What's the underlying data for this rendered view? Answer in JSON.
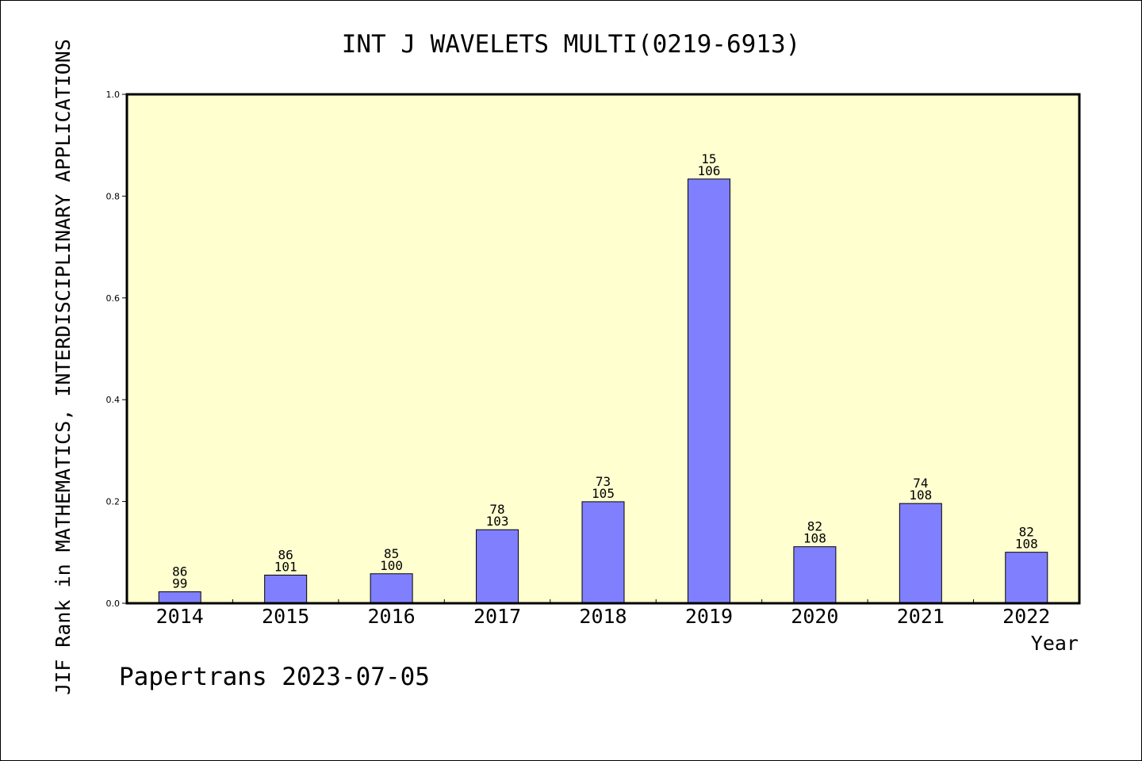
{
  "chart_data": {
    "type": "bar",
    "title": "INT J WAVELETS MULTI(0219-6913)",
    "xlabel": "Year",
    "ylabel": "JIF Rank in MATHEMATICS,  INTERDISCIPLINARY APPLICATIONS",
    "footer": "Papertrans 2023-07-05",
    "categories": [
      "2014",
      "2015",
      "2016",
      "2017",
      "2018",
      "2019",
      "2020",
      "2021",
      "2022"
    ],
    "values": [
      0.0225,
      0.0553,
      0.058,
      0.1445,
      0.1995,
      0.8336,
      0.1111,
      0.196,
      0.1002
    ],
    "bar_labels": [
      [
        "86",
        "99"
      ],
      [
        "86",
        "101"
      ],
      [
        "85",
        "100"
      ],
      [
        "78",
        "103"
      ],
      [
        "73",
        "105"
      ],
      [
        "15",
        "106"
      ],
      [
        "82",
        "108"
      ],
      [
        "74",
        "108"
      ],
      [
        "82",
        "108"
      ]
    ],
    "ylim": [
      0,
      1.0
    ],
    "yticks": [
      "0.0",
      "0.2",
      "0.4",
      "0.6",
      "0.8",
      "1.0"
    ],
    "grid": false,
    "colors": {
      "bar": "#8080ff",
      "plot_background": "#ffffd0",
      "axis": "#000000"
    }
  }
}
